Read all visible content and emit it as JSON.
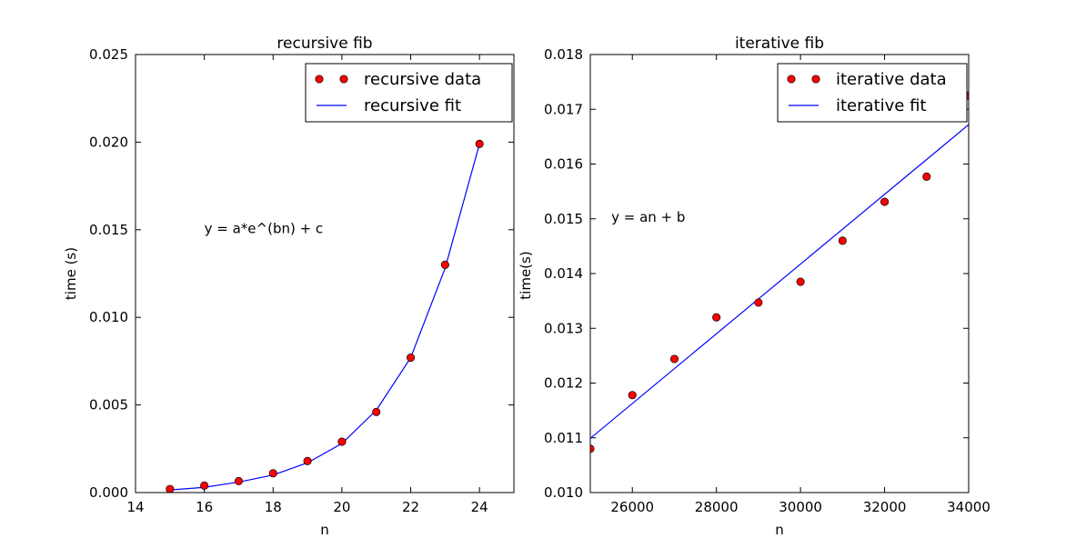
{
  "chart_data": [
    {
      "type": "scatter",
      "title": "recursive fib",
      "xlabel": "n",
      "ylabel": "time (s)",
      "xlim": [
        14,
        25
      ],
      "ylim": [
        0.0,
        0.025
      ],
      "xticks": [
        14,
        16,
        18,
        20,
        22,
        24
      ],
      "xtick_labels": [
        "14",
        "16",
        "18",
        "20",
        "22",
        "24"
      ],
      "yticks": [
        0.0,
        0.005,
        0.01,
        0.015,
        0.02,
        0.025
      ],
      "ytick_labels": [
        "0.000",
        "0.005",
        "0.010",
        "0.015",
        "0.020",
        "0.025"
      ],
      "legend_placement": "top-right",
      "annotation": "y = a*e^(bn) + c",
      "annotation_at": [
        16,
        0.0148
      ],
      "series": [
        {
          "name": "recursive data",
          "kind": "points",
          "color": "#ff0000",
          "x": [
            15,
            16,
            17,
            18,
            19,
            20,
            21,
            22,
            23,
            24
          ],
          "y": [
            0.0002,
            0.0004,
            0.00065,
            0.0011,
            0.0018,
            0.0029,
            0.0046,
            0.0077,
            0.013,
            0.0199
          ]
        },
        {
          "name": "recursive fit",
          "kind": "line",
          "color": "#0000ff",
          "x": [
            15,
            16,
            17,
            18,
            19,
            20,
            21,
            22,
            23,
            24
          ],
          "y": [
            0.00015,
            0.0003,
            0.0006,
            0.001,
            0.0017,
            0.0028,
            0.0047,
            0.0077,
            0.0128,
            0.0199
          ]
        }
      ]
    },
    {
      "type": "scatter",
      "title": "iterative fib",
      "xlabel": "n",
      "ylabel": "time(s)",
      "xlim": [
        25000,
        34000
      ],
      "ylim": [
        0.01,
        0.018
      ],
      "xticks": [
        26000,
        28000,
        30000,
        32000,
        34000
      ],
      "xtick_labels": [
        "26000",
        "28000",
        "30000",
        "32000",
        "34000"
      ],
      "yticks": [
        0.01,
        0.011,
        0.012,
        0.013,
        0.014,
        0.015,
        0.016,
        0.017,
        0.018
      ],
      "ytick_labels": [
        "0.010",
        "0.011",
        "0.012",
        "0.013",
        "0.014",
        "0.015",
        "0.016",
        "0.017",
        "0.018"
      ],
      "legend_placement": "top-right",
      "annotation": "y = an + b",
      "annotation_at": [
        25500,
        0.01495
      ],
      "series": [
        {
          "name": "iterative data",
          "kind": "points",
          "color": "#ff0000",
          "x": [
            25000,
            26000,
            27000,
            28000,
            29000,
            30000,
            31000,
            32000,
            33000,
            34000
          ],
          "y": [
            0.0108,
            0.01178,
            0.01244,
            0.0132,
            0.01347,
            0.01385,
            0.0146,
            0.01531,
            0.01577,
            0.01725
          ]
        },
        {
          "name": "iterative fit",
          "kind": "line",
          "color": "#0000ff",
          "x": [
            25000,
            34000
          ],
          "y": [
            0.01099,
            0.01672
          ]
        }
      ]
    }
  ]
}
